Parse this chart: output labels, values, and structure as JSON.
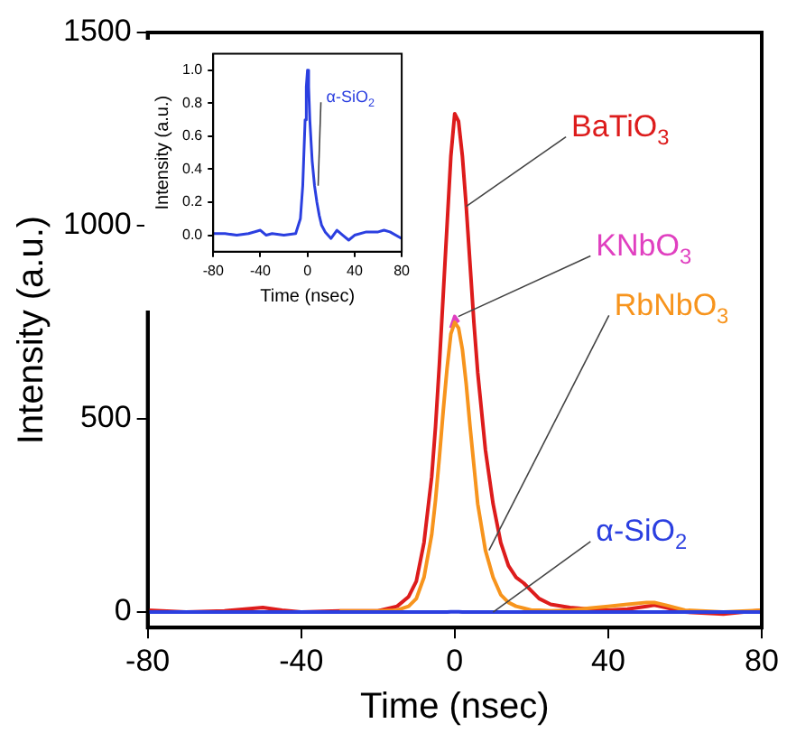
{
  "chart_data": [
    {
      "type": "line",
      "xlabel": "Time (nsec)",
      "ylabel": "Intensity (a.u.)",
      "xlim": [
        -80,
        80
      ],
      "xticks": [
        -80,
        -40,
        0,
        40,
        80
      ],
      "ylim": [
        -40,
        1500
      ],
      "yticks": [
        0,
        500,
        1000,
        1500
      ],
      "grid": false,
      "legend": false,
      "marker": "none",
      "line_style": "solid",
      "x": [
        -80,
        -70,
        -60,
        -50,
        -45,
        -40,
        -30,
        -20,
        -15,
        -12,
        -10,
        -8,
        -6,
        -5,
        -4,
        -3,
        -2,
        -1,
        0,
        1,
        2,
        3,
        4,
        5,
        6,
        8,
        10,
        12,
        14,
        16,
        18,
        20,
        22,
        25,
        30,
        35,
        40,
        45,
        50,
        52,
        55,
        60,
        70,
        80
      ],
      "series": [
        {
          "name": "BaTiO$_{3}$",
          "color": "#dd1c1c",
          "values": [
            5,
            0,
            3,
            12,
            5,
            0,
            3,
            3,
            15,
            40,
            80,
            180,
            350,
            480,
            640,
            820,
            1000,
            1180,
            1290,
            1270,
            1180,
            1050,
            900,
            750,
            620,
            420,
            280,
            180,
            120,
            90,
            75,
            55,
            35,
            20,
            12,
            8,
            5,
            8,
            15,
            18,
            12,
            0,
            -5,
            5
          ]
        },
        {
          "name": "KNbO$_{3}$",
          "color": "#e040c0",
          "values": [
            null,
            null,
            null,
            null,
            null,
            null,
            null,
            null,
            null,
            null,
            null,
            null,
            null,
            null,
            null,
            null,
            null,
            735,
            765,
            750,
            null,
            null,
            null,
            null,
            null,
            null,
            null,
            null,
            null,
            null,
            null,
            null,
            null,
            null,
            null,
            null,
            null,
            null,
            null,
            null,
            null,
            null,
            null,
            null
          ]
        },
        {
          "name": "RbNbO$_{3}$",
          "color": "#f7941d",
          "values": [
            null,
            null,
            null,
            null,
            null,
            null,
            3,
            3,
            5,
            15,
            35,
            90,
            200,
            290,
            400,
            520,
            630,
            720,
            750,
            735,
            680,
            590,
            480,
            380,
            280,
            160,
            90,
            45,
            25,
            15,
            10,
            5,
            5,
            3,
            5,
            10,
            15,
            20,
            25,
            25,
            18,
            5,
            0,
            5
          ]
        },
        {
          "name": "α-SiO$_{2}$",
          "color": "#2b3fe0",
          "values": [
            0,
            0,
            0,
            0,
            0,
            0,
            0,
            0,
            0,
            0,
            0,
            0,
            0,
            0,
            0,
            0,
            0,
            1,
            1,
            1,
            0,
            0,
            0,
            0,
            0,
            0,
            0,
            0,
            0,
            0,
            0,
            0,
            0,
            0,
            0,
            0,
            0,
            0,
            0,
            0,
            0,
            0,
            0,
            0
          ]
        }
      ]
    },
    {
      "type": "line",
      "xlabel": "Time (nsec)",
      "ylabel": "Intensity (a.u.)",
      "xlim": [
        -80,
        80
      ],
      "xticks": [
        -80,
        -40,
        0,
        40,
        80
      ],
      "ylim": [
        -0.1,
        1.1
      ],
      "yticks": [
        {
          "value": 0,
          "label": "0.0"
        },
        {
          "value": 0.2,
          "label": "0.2"
        },
        {
          "value": 0.4,
          "label": "0.4"
        },
        {
          "value": 0.6,
          "label": "0.6"
        },
        {
          "value": 0.8,
          "label": "0.8"
        },
        {
          "value": 1,
          "label": "1.0"
        }
      ],
      "grid": false,
      "legend": false,
      "marker": "none",
      "line_style": "solid",
      "x": [
        -80,
        -70,
        -60,
        -50,
        -40,
        -35,
        -30,
        -20,
        -10,
        -6,
        -4,
        -2,
        -1,
        0,
        1,
        2,
        4,
        6,
        8,
        10,
        12,
        15,
        20,
        25,
        30,
        35,
        40,
        50,
        60,
        65,
        70,
        80
      ],
      "series": [
        {
          "name": "α-SiO$_{2}$",
          "color": "#2b3fe0",
          "values": [
            0.01,
            0.01,
            0.0,
            0.01,
            0.03,
            0.0,
            0.01,
            0.0,
            0.01,
            0.1,
            0.3,
            0.7,
            0.9,
            1.0,
            0.9,
            0.7,
            0.45,
            0.3,
            0.2,
            0.12,
            0.06,
            0.02,
            -0.02,
            0.03,
            0.0,
            -0.03,
            0.0,
            0.02,
            0.02,
            0.03,
            0.02,
            -0.02
          ]
        }
      ]
    }
  ]
}
